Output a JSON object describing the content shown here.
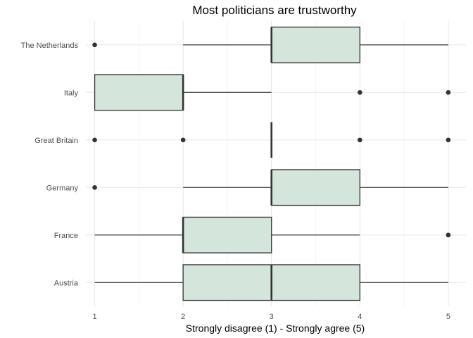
{
  "chart_data": {
    "type": "boxplot",
    "title": "Most politicians are trustworthy",
    "xlabel": "Strongly disagree (1) - Strongly agree (5)",
    "ylabel": "",
    "xlim": [
      0.9,
      5.2
    ],
    "x_ticks": [
      1,
      2,
      3,
      4,
      5
    ],
    "grid": true,
    "orientation": "horizontal",
    "colors": {
      "box_fill": "#d4e6dc",
      "box_stroke": "#333333",
      "outlier": "#333333"
    },
    "categories": [
      "The Netherlands",
      "Italy",
      "Great Britain",
      "Germany",
      "France",
      "Austria"
    ],
    "boxes": [
      {
        "category": "The Netherlands",
        "whisker_low": 2,
        "q1": 3,
        "median": 3,
        "q3": 4,
        "whisker_high": 5,
        "outliers": [
          1
        ]
      },
      {
        "category": "Italy",
        "whisker_low": 1,
        "q1": 1,
        "median": 2,
        "q3": 2,
        "whisker_high": 3,
        "outliers": [
          4,
          5
        ]
      },
      {
        "category": "Great Britain",
        "whisker_low": 3,
        "q1": 3,
        "median": 3,
        "q3": 3,
        "whisker_high": 3,
        "outliers": [
          1,
          2,
          4,
          5
        ]
      },
      {
        "category": "Germany",
        "whisker_low": 2,
        "q1": 3,
        "median": 3,
        "q3": 4,
        "whisker_high": 5,
        "outliers": [
          1
        ]
      },
      {
        "category": "France",
        "whisker_low": 1,
        "q1": 2,
        "median": 2,
        "q3": 3,
        "whisker_high": 4,
        "outliers": [
          5
        ]
      },
      {
        "category": "Austria",
        "whisker_low": 1,
        "q1": 2,
        "median": 3,
        "q3": 4,
        "whisker_high": 5,
        "outliers": []
      }
    ]
  }
}
